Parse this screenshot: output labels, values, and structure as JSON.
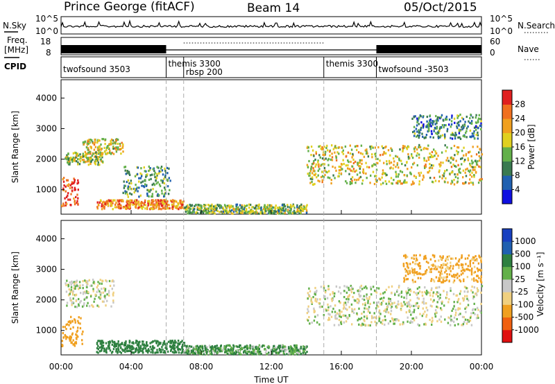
{
  "header": {
    "station": "Prince George (fitACF)",
    "beam": "Beam 14",
    "date": "05/Oct/2015"
  },
  "top_panels": {
    "nsky_label": "N.Sky",
    "nsky_ticks": [
      "10^5",
      "10^0"
    ],
    "nsearch_label": "N.Search",
    "nsearch_ticks": [
      "10^5",
      "10^0"
    ],
    "freq_label_1": "Freq.",
    "freq_label_2": "[MHz]",
    "freq_ticks": [
      "18",
      "8"
    ],
    "nave_label": "Nave",
    "nave_ticks": [
      "60",
      "0"
    ],
    "cpid_label": "CPID",
    "cpid_segments": [
      {
        "label": "twofsound 3503",
        "start_h": 0.0
      },
      {
        "label": "themis 3300",
        "start_h": 6.0
      },
      {
        "label": "rbsp 200",
        "start_h": 7.0
      },
      {
        "label": "themis 3300",
        "start_h": 15.0
      },
      {
        "label": "twofsound -3503",
        "start_h": 18.0
      }
    ]
  },
  "colorbars": {
    "power": {
      "label": "Power [dB]",
      "ticks": [
        "4",
        "8",
        "12",
        "16",
        "20",
        "24",
        "28"
      ],
      "colors": [
        "#1010e0",
        "#2060b0",
        "#3a7a50",
        "#63b04a",
        "#e0d020",
        "#f0a020",
        "#f07020",
        "#e02020"
      ]
    },
    "velocity": {
      "label": "Velocity [m s⁻¹]",
      "ticks": [
        "1000",
        "500",
        "100",
        "25",
        "-25",
        "-100",
        "-500",
        "-1000"
      ],
      "colors": [
        "#e01010",
        "#f06010",
        "#f0a020",
        "#f0d080",
        "#c8c8c8",
        "#63b04a",
        "#2e8040",
        "#2060b0",
        "#1840c0"
      ]
    }
  },
  "chart_data": [
    {
      "type": "heatmap",
      "name": "power",
      "ylabel": "Slant Range [km]",
      "ylim": [
        200,
        4600
      ],
      "yticks": [
        "1000",
        "2000",
        "3000",
        "4000"
      ],
      "xlim_h": [
        0,
        24
      ],
      "xticks": [
        "00:00",
        "04:00",
        "08:00",
        "12:00",
        "16:00",
        "20:00",
        "00:00"
      ],
      "echo_regions": [
        {
          "t0": 0.0,
          "t1": 1.0,
          "r0": 500,
          "r1": 1500,
          "level": 28
        },
        {
          "t0": 0.2,
          "t1": 2.4,
          "r0": 1850,
          "r1": 2250,
          "level": 14
        },
        {
          "t0": 1.2,
          "t1": 3.5,
          "r0": 2200,
          "r1": 2700,
          "level": 16
        },
        {
          "t0": 3.5,
          "t1": 6.2,
          "r0": 800,
          "r1": 1800,
          "level": 10
        },
        {
          "t0": 2.0,
          "t1": 7.0,
          "r0": 400,
          "r1": 700,
          "level": 22
        },
        {
          "t0": 7.0,
          "t1": 14.0,
          "r0": 250,
          "r1": 550,
          "level": 12
        },
        {
          "t0": 14.0,
          "t1": 24.0,
          "r0": 1200,
          "r1": 2500,
          "level": 16
        },
        {
          "t0": 20.0,
          "t1": 24.0,
          "r0": 2700,
          "r1": 3500,
          "level": 8
        }
      ]
    },
    {
      "type": "heatmap",
      "name": "velocity",
      "ylabel": "Slant Range [km]",
      "xlabel": "Time UT",
      "ylim": [
        200,
        4600
      ],
      "yticks": [
        "1000",
        "2000",
        "3000",
        "4000"
      ],
      "xlim_h": [
        0,
        24
      ],
      "xticks": [
        "00:00",
        "04:00",
        "08:00",
        "12:00",
        "16:00",
        "20:00",
        "00:00"
      ],
      "echo_regions": [
        {
          "t0": 0.0,
          "t1": 1.2,
          "r0": 500,
          "r1": 1500,
          "vel": -300
        },
        {
          "t0": 0.2,
          "t1": 3.0,
          "r0": 1800,
          "r1": 2700,
          "vel": 0
        },
        {
          "t0": 2.0,
          "t1": 7.0,
          "r0": 300,
          "r1": 700,
          "vel": 200
        },
        {
          "t0": 7.0,
          "t1": 14.0,
          "r0": 250,
          "r1": 550,
          "vel": 100
        },
        {
          "t0": 14.0,
          "t1": 24.0,
          "r0": 1200,
          "r1": 2500,
          "vel": 0
        },
        {
          "t0": 19.5,
          "t1": 24.0,
          "r0": 2600,
          "r1": 3500,
          "vel": -150
        }
      ]
    }
  ]
}
